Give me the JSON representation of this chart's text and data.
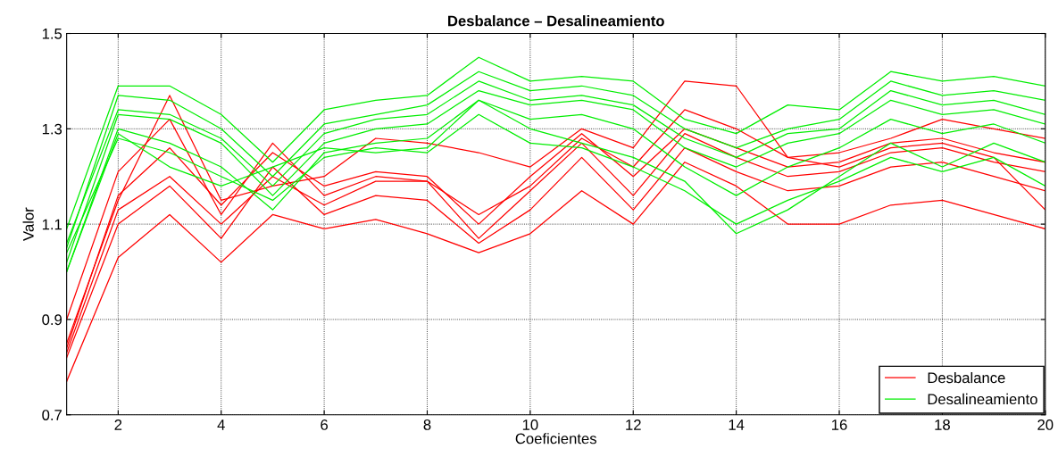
{
  "chart_data": {
    "type": "line",
    "title": "Desbalance – Desalineamiento",
    "xlabel": "Coeficientes",
    "ylabel": "Valor",
    "x": [
      1,
      2,
      3,
      4,
      5,
      6,
      7,
      8,
      9,
      10,
      11,
      12,
      13,
      14,
      15,
      16,
      17,
      18,
      19,
      20
    ],
    "xlim": [
      1,
      20
    ],
    "xticks": [
      2,
      4,
      6,
      8,
      10,
      12,
      14,
      16,
      18,
      20
    ],
    "ylim": [
      0.7,
      1.5
    ],
    "yticks": [
      0.7,
      0.9,
      1.1,
      1.3,
      1.5
    ],
    "grid": true,
    "legend": "bottom right",
    "marker": "none",
    "line_style": "solid",
    "series": [
      {
        "name": "Desbalance",
        "color": "#ff0000",
        "values": [
          0.83,
          1.13,
          1.2,
          1.1,
          1.2,
          1.14,
          1.19,
          1.19,
          1.07,
          1.17,
          1.27,
          1.16,
          1.29,
          1.24,
          1.2,
          1.21,
          1.25,
          1.26,
          1.23,
          1.21
        ]
      },
      {
        "color": "#ff0000",
        "values": [
          0.77,
          1.03,
          1.12,
          1.02,
          1.12,
          1.09,
          1.11,
          1.08,
          1.04,
          1.08,
          1.17,
          1.1,
          1.23,
          1.18,
          1.1,
          1.1,
          1.14,
          1.15,
          1.12,
          1.09
        ]
      },
      {
        "color": "#ff0000",
        "values": [
          0.85,
          1.15,
          1.37,
          1.15,
          1.18,
          1.2,
          1.28,
          1.27,
          1.25,
          1.22,
          1.3,
          1.26,
          1.4,
          1.39,
          1.24,
          1.25,
          1.28,
          1.32,
          1.3,
          1.28
        ]
      },
      {
        "color": "#ff0000",
        "values": [
          0.84,
          1.16,
          1.26,
          1.14,
          1.25,
          1.18,
          1.21,
          1.2,
          1.1,
          1.2,
          1.29,
          1.2,
          1.3,
          1.26,
          1.22,
          1.23,
          1.27,
          1.28,
          1.25,
          1.23
        ]
      },
      {
        "color": "#ff0000",
        "values": [
          0.82,
          1.1,
          1.18,
          1.07,
          1.22,
          1.12,
          1.16,
          1.15,
          1.06,
          1.13,
          1.24,
          1.13,
          1.26,
          1.21,
          1.17,
          1.18,
          1.22,
          1.23,
          1.2,
          1.17
        ]
      },
      {
        "color": "#ff0000",
        "values": [
          0.9,
          1.21,
          1.32,
          1.12,
          1.27,
          1.16,
          1.2,
          1.19,
          1.12,
          1.18,
          1.28,
          1.22,
          1.34,
          1.3,
          1.24,
          1.22,
          1.26,
          1.27,
          1.24,
          1.13
        ]
      },
      {
        "name": "Desalineamiento",
        "color": "#00ee00",
        "values": [
          1.05,
          1.37,
          1.36,
          1.3,
          1.2,
          1.31,
          1.33,
          1.35,
          1.42,
          1.38,
          1.39,
          1.37,
          1.3,
          1.26,
          1.3,
          1.32,
          1.4,
          1.37,
          1.38,
          1.36
        ]
      },
      {
        "color": "#00ee00",
        "values": [
          1.09,
          1.39,
          1.39,
          1.33,
          1.23,
          1.34,
          1.36,
          1.37,
          1.45,
          1.4,
          1.41,
          1.4,
          1.32,
          1.29,
          1.35,
          1.34,
          1.42,
          1.4,
          1.41,
          1.39
        ]
      },
      {
        "color": "#00ee00",
        "values": [
          1.02,
          1.33,
          1.32,
          1.27,
          1.16,
          1.27,
          1.3,
          1.31,
          1.38,
          1.35,
          1.36,
          1.34,
          1.26,
          1.22,
          1.27,
          1.29,
          1.36,
          1.33,
          1.34,
          1.31
        ]
      },
      {
        "color": "#00ee00",
        "values": [
          1.0,
          1.3,
          1.27,
          1.22,
          1.13,
          1.25,
          1.27,
          1.28,
          1.36,
          1.32,
          1.33,
          1.3,
          1.22,
          1.16,
          1.22,
          1.26,
          1.32,
          1.29,
          1.31,
          1.27
        ]
      },
      {
        "color": "#00ee00",
        "values": [
          1.04,
          1.28,
          1.25,
          1.2,
          1.15,
          1.24,
          1.26,
          1.25,
          1.33,
          1.27,
          1.26,
          1.22,
          1.17,
          1.1,
          1.15,
          1.19,
          1.24,
          1.21,
          1.24,
          1.18
        ]
      },
      {
        "color": "#00ee00",
        "values": [
          1.0,
          1.29,
          1.22,
          1.18,
          1.22,
          1.26,
          1.25,
          1.26,
          1.36,
          1.3,
          1.27,
          1.24,
          1.19,
          1.08,
          1.13,
          1.2,
          1.27,
          1.22,
          1.27,
          1.23
        ]
      },
      {
        "color": "#00ee00",
        "values": [
          1.06,
          1.34,
          1.33,
          1.28,
          1.18,
          1.29,
          1.32,
          1.33,
          1.4,
          1.36,
          1.37,
          1.35,
          1.28,
          1.24,
          1.29,
          1.3,
          1.38,
          1.35,
          1.36,
          1.33
        ]
      }
    ]
  }
}
